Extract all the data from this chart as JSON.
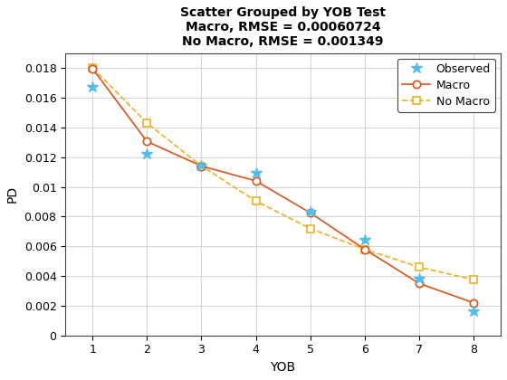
{
  "title": "Scatter Grouped by YOB Test\nMacro, RMSE = 0.00060724\nNo Macro, RMSE = 0.001349",
  "xlabel": "YOB",
  "ylabel": "PD",
  "xob": [
    1,
    2,
    3,
    4,
    5,
    6,
    7,
    8
  ],
  "observed_y": [
    0.01675,
    0.01225,
    0.01145,
    0.01095,
    0.00835,
    0.00645,
    0.00385,
    0.0016
  ],
  "macro_x": [
    1,
    2,
    3,
    4,
    5,
    6,
    7,
    8
  ],
  "macro_y": [
    0.01795,
    0.01305,
    0.0114,
    0.0104,
    0.00825,
    0.0058,
    0.0035,
    0.0022
  ],
  "nomacro_x": [
    1,
    2,
    3,
    4,
    5,
    6,
    7,
    8
  ],
  "nomacro_y": [
    0.018,
    0.0143,
    0.0114,
    0.00905,
    0.0072,
    0.0058,
    0.0046,
    0.00375
  ],
  "observed_color": "#4DBEEE",
  "macro_color": "#D95319",
  "nomacro_color": "#EDB120",
  "ylim": [
    0,
    0.019
  ],
  "xlim": [
    0.5,
    8.5
  ],
  "yticks": [
    0,
    0.002,
    0.004,
    0.006,
    0.008,
    0.01,
    0.012,
    0.014,
    0.016,
    0.018
  ],
  "ytick_labels": [
    "0",
    "0.002",
    "0.004",
    "0.006",
    "0.008",
    "0.01",
    "0.012",
    "0.014",
    "0.016",
    "0.018"
  ],
  "xticks": [
    1,
    2,
    3,
    4,
    5,
    6,
    7,
    8
  ],
  "grid_color": "#D3D3D3",
  "title_fontsize": 10,
  "label_fontsize": 10,
  "tick_fontsize": 9,
  "legend_fontsize": 9,
  "figsize": [
    5.6,
    4.2
  ],
  "dpi": 100
}
